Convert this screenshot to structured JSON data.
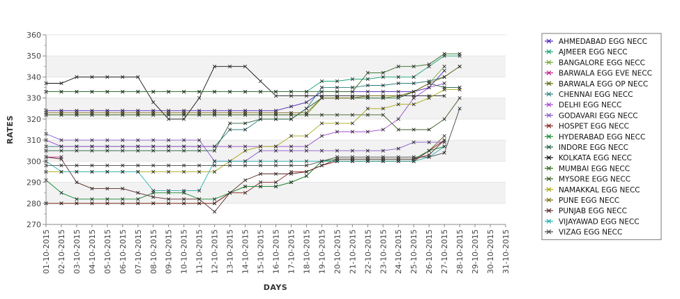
{
  "chart_data": {
    "type": "line",
    "title": "",
    "xlabel": "DAYS",
    "ylabel": "RATES",
    "ylim": [
      270,
      360
    ],
    "yticks": [
      270,
      280,
      290,
      300,
      310,
      320,
      330,
      340,
      350,
      360
    ],
    "categories": [
      "01-10-2015",
      "02-10-2015",
      "03-10-2015",
      "04-10-2015",
      "05-10-2015",
      "06-10-2015",
      "07-10-2015",
      "08-10-2015",
      "09-10-2015",
      "10-10-2015",
      "11-10-2015",
      "12-10-2015",
      "13-10-2015",
      "14-10-2015",
      "15-10-2015",
      "16-10-2015",
      "17-10-2015",
      "18-10-2015",
      "19-10-2015",
      "20-10-2015",
      "21-10-2015",
      "22-10-2015",
      "23-10-2015",
      "24-10-2015",
      "25-10-2015",
      "26-10-2015",
      "27-10-2015",
      "28-10-2015",
      "29-10-2015",
      "30-10-2015",
      "31-10-2015"
    ],
    "grid": true,
    "legend_position": "right",
    "series": [
      {
        "name": "AHMEDABAD EGG NECC",
        "color": "#4b1fb5",
        "values": [
          324,
          324,
          324,
          324,
          324,
          324,
          324,
          324,
          324,
          324,
          324,
          324,
          324,
          324,
          324,
          324,
          326,
          328,
          333,
          333,
          333,
          333,
          333,
          333,
          333,
          335,
          343,
          null,
          null,
          null,
          null
        ]
      },
      {
        "name": "AJMEER EGG NECC",
        "color": "#1aa37a",
        "values": [
          333,
          333,
          333,
          333,
          333,
          333,
          333,
          333,
          333,
          333,
          333,
          333,
          333,
          333,
          333,
          333,
          333,
          333,
          338,
          338,
          339,
          339,
          340,
          340,
          340,
          345,
          350,
          350,
          null,
          null,
          null
        ]
      },
      {
        "name": "BANGALORE EGG NECC",
        "color": "#7aa83a",
        "values": [
          322,
          322,
          322,
          322,
          322,
          322,
          322,
          322,
          322,
          322,
          322,
          322,
          322,
          322,
          322,
          322,
          322,
          322,
          330,
          330,
          330,
          330,
          330,
          331,
          333,
          337,
          345,
          null,
          null,
          null,
          null
        ]
      },
      {
        "name": "BARWALA EGG EVE NECC",
        "color": "#c2228a",
        "values": [
          302,
          302,
          null,
          null,
          null,
          null,
          null,
          null,
          null,
          null,
          null,
          null,
          null,
          null,
          null,
          null,
          null,
          null,
          null,
          null,
          null,
          null,
          null,
          null,
          null,
          null,
          null,
          null,
          null,
          null,
          null
        ]
      },
      {
        "name": "BARWALA EGG OP NECC",
        "color": "#5c6a12",
        "values": [
          280,
          280,
          280,
          280,
          280,
          280,
          280,
          280,
          280,
          280,
          280,
          280,
          285,
          288,
          288,
          288,
          290,
          293,
          300,
          300,
          300,
          300,
          300,
          300,
          300,
          305,
          312,
          null,
          null,
          null,
          null
        ]
      },
      {
        "name": "CHENNAI EGG NECC",
        "color": "#2a7e7e",
        "values": [
          307,
          307,
          307,
          307,
          307,
          307,
          307,
          307,
          307,
          307,
          307,
          307,
          315,
          315,
          320,
          320,
          320,
          325,
          335,
          335,
          335,
          336,
          336,
          337,
          337,
          338,
          340,
          345,
          null,
          null,
          null
        ]
      },
      {
        "name": "DELHI EGG NECC",
        "color": "#a04ad0",
        "values": [
          310,
          307,
          307,
          307,
          307,
          307,
          307,
          307,
          307,
          307,
          307,
          307,
          307,
          307,
          307,
          307,
          307,
          307,
          312,
          314,
          314,
          314,
          315,
          320,
          330,
          335,
          337,
          null,
          null,
          null,
          null
        ]
      },
      {
        "name": "GODAVARI EGG NECC",
        "color": "#8a5ac8",
        "values": [
          313,
          310,
          310,
          310,
          310,
          310,
          310,
          310,
          310,
          310,
          310,
          300,
          300,
          300,
          305,
          305,
          305,
          305,
          305,
          305,
          305,
          305,
          305,
          306,
          309,
          309,
          309,
          null,
          null,
          null,
          null
        ]
      },
      {
        "name": "HOSPET EGG NECC",
        "color": "#8a2020",
        "values": [
          280,
          280,
          280,
          280,
          280,
          280,
          280,
          280,
          280,
          280,
          280,
          280,
          285,
          285,
          290,
          290,
          295,
          295,
          298,
          300,
          300,
          300,
          300,
          300,
          300,
          305,
          310,
          null,
          null,
          null,
          null
        ]
      },
      {
        "name": "HYDERABAD EGG NECC",
        "color": "#168a30",
        "values": [
          291,
          285,
          282,
          282,
          282,
          282,
          282,
          285,
          285,
          285,
          282,
          282,
          285,
          288,
          288,
          288,
          290,
          293,
          300,
          301,
          301,
          301,
          301,
          301,
          301,
          305,
          307,
          null,
          null,
          null,
          null
        ]
      },
      {
        "name": "INDORE EGG NECC",
        "color": "#1f5c3a",
        "values": [
          305,
          305,
          305,
          305,
          305,
          305,
          305,
          305,
          305,
          305,
          305,
          305,
          318,
          318,
          320,
          320,
          320,
          325,
          330,
          330,
          330,
          330,
          330,
          330,
          333,
          337,
          335,
          335,
          null,
          null,
          null
        ]
      },
      {
        "name": "KOLKATA EGG NECC",
        "color": "#111111",
        "values": [
          337,
          337,
          340,
          340,
          340,
          340,
          340,
          328,
          320,
          320,
          330,
          345,
          345,
          345,
          338,
          331,
          331,
          331,
          331,
          331,
          331,
          331,
          331,
          331,
          331,
          331,
          331,
          null,
          null,
          null,
          null
        ]
      },
      {
        "name": "MUMBAI EGG NECC",
        "color": "#2d6a1e",
        "values": [
          333,
          333,
          333,
          333,
          333,
          333,
          333,
          333,
          333,
          333,
          333,
          333,
          333,
          333,
          333,
          333,
          333,
          333,
          333,
          333,
          333,
          342,
          342,
          345,
          345,
          346,
          351,
          351,
          null,
          null,
          null
        ]
      },
      {
        "name": "MYSORE EGG NECC",
        "color": "#3e5e28",
        "values": [
          322,
          322,
          322,
          322,
          322,
          322,
          322,
          322,
          322,
          322,
          322,
          322,
          322,
          322,
          322,
          322,
          322,
          322,
          322,
          322,
          322,
          322,
          322,
          315,
          315,
          315,
          320,
          330,
          null,
          null,
          null
        ]
      },
      {
        "name": "NAMAKKAL EGG NECC",
        "color": "#a8a812",
        "values": [
          295,
          295,
          295,
          295,
          295,
          295,
          295,
          295,
          295,
          295,
          295,
          295,
          300,
          305,
          307,
          307,
          312,
          312,
          318,
          318,
          318,
          325,
          325,
          327,
          327,
          330,
          334,
          334,
          null,
          null,
          null
        ]
      },
      {
        "name": "PUNE EGG NECC",
        "color": "#7a6a10",
        "values": [
          323,
          323,
          323,
          323,
          323,
          323,
          323,
          323,
          323,
          323,
          323,
          323,
          323,
          323,
          323,
          323,
          323,
          323,
          330,
          330,
          330,
          331,
          331,
          331,
          333,
          337,
          340,
          345,
          null,
          null,
          null
        ]
      },
      {
        "name": "PUNJAB EGG NECC",
        "color": "#5a2a2a",
        "values": [
          302,
          301,
          290,
          287,
          287,
          287,
          285,
          283,
          282,
          282,
          282,
          276,
          285,
          291,
          294,
          294,
          294,
          295,
          298,
          301,
          301,
          301,
          301,
          301,
          301,
          303,
          310,
          null,
          null,
          null,
          null
        ]
      },
      {
        "name": "VIJAYAWAD EGG NECC",
        "color": "#28b0b0",
        "values": [
          300,
          295,
          295,
          295,
          295,
          295,
          295,
          286,
          286,
          286,
          286,
          300,
          300,
          300,
          300,
          300,
          300,
          300,
          300,
          300,
          300,
          300,
          300,
          300,
          300,
          302,
          307,
          null,
          null,
          null,
          null
        ]
      },
      {
        "name": "VIZAG EGG NECC",
        "color": "#4a4a4a",
        "values": [
          298,
          298,
          298,
          298,
          298,
          298,
          298,
          298,
          298,
          298,
          298,
          298,
          298,
          298,
          298,
          298,
          298,
          298,
          300,
          302,
          302,
          302,
          302,
          302,
          302,
          302,
          304,
          325,
          null,
          null,
          null
        ]
      }
    ]
  }
}
